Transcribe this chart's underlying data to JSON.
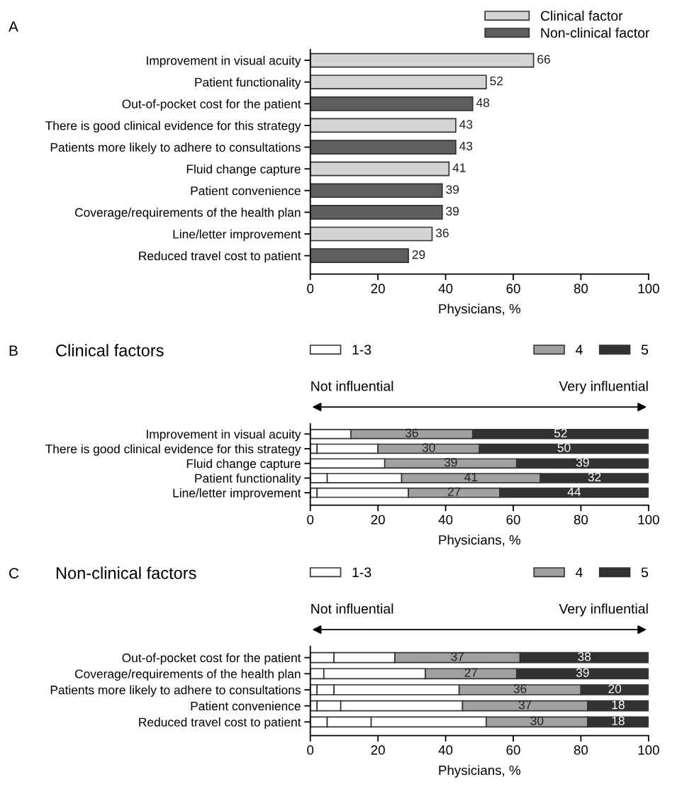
{
  "chart_data": [
    {
      "type": "bar",
      "orientation": "horizontal",
      "annotations": [
        "A"
      ],
      "xlabel": "Physicians, %",
      "categories": [
        "Improvement in visual acuity",
        "Patient functionality",
        "Out-of-pocket cost for the patient",
        "There is good clinical evidence for this strategy",
        "Patients more likely to adhere to consultations",
        "Fluid change capture",
        "Patient convenience",
        "Coverage/requirements of the health plan",
        "Line/letter improvement",
        "Reduced travel cost to patient"
      ],
      "series": [
        {
          "name": "Clinical factor",
          "color": "#d4d4d4",
          "values": [
            66,
            52,
            null,
            43,
            null,
            41,
            null,
            null,
            36,
            null
          ]
        },
        {
          "name": "Non-clinical factor",
          "color": "#5e5e5e",
          "values": [
            null,
            null,
            48,
            null,
            43,
            null,
            39,
            39,
            null,
            29
          ]
        }
      ],
      "data_labels": true,
      "xlim": [
        0,
        100
      ],
      "xticks": [
        0,
        20,
        40,
        60,
        80,
        100
      ],
      "legend": "top right",
      "grid": false
    },
    {
      "type": "bar",
      "orientation": "horizontal",
      "stacked": true,
      "title": "Clinical factors",
      "annotations": [
        "B",
        "Not influential",
        "Very influential"
      ],
      "xlabel": "Physicians, %",
      "categories": [
        "Improvement in visual acuity",
        "There is good clinical evidence for this strategy",
        "Fluid change capture",
        "Patient functionality",
        "Line/letter improvement"
      ],
      "series": [
        {
          "name": "1-3",
          "color": "#ffffff",
          "values": [
            12,
            2,
            22,
            5,
            2
          ]
        },
        {
          "color": "#ffffff",
          "values": [
            null,
            18,
            null,
            22,
            27
          ]
        },
        {
          "color": "#ffffff",
          "values": [
            null,
            null,
            null,
            null,
            null
          ]
        },
        {
          "name": "4",
          "color": "#a0a0a2",
          "values": [
            36,
            30,
            39,
            41,
            27
          ],
          "value_labels": [
            "36",
            "30",
            "39",
            "41",
            "27"
          ]
        },
        {
          "name": "5",
          "color": "#323232",
          "values": [
            52,
            50,
            39,
            32,
            44
          ],
          "value_labels": [
            "52",
            "50",
            "39",
            "32",
            "44"
          ]
        }
      ],
      "xlim": [
        0,
        100
      ],
      "xticks": [
        0,
        20,
        40,
        60,
        80,
        100
      ],
      "legend": "top",
      "grid": false
    },
    {
      "type": "bar",
      "orientation": "horizontal",
      "stacked": true,
      "title": "Non-clinical factors",
      "annotations": [
        "C",
        "Not influential",
        "Very influential"
      ],
      "xlabel": "Physicians, %",
      "categories": [
        "Out-of-pocket cost for the patient",
        "Coverage/requirements of the health plan",
        "Patients more likely to adhere to consultations",
        "Patient convenience",
        "Reduced travel cost to patient"
      ],
      "series": [
        {
          "name": "1-3",
          "color": "#ffffff",
          "values": [
            7,
            4,
            2,
            2,
            5
          ]
        },
        {
          "color": "#ffffff",
          "values": [
            18,
            30,
            5,
            7,
            13
          ]
        },
        {
          "color": "#ffffff",
          "values": [
            null,
            null,
            37,
            36,
            34
          ]
        },
        {
          "name": "4",
          "color": "#a0a0a2",
          "values": [
            37,
            27,
            36,
            37,
            30
          ],
          "value_labels": [
            "37",
            "27",
            "36",
            "37",
            "30"
          ]
        },
        {
          "name": "5",
          "color": "#323232",
          "values": [
            38,
            39,
            20,
            18,
            18
          ],
          "value_labels": [
            "38",
            "39",
            "20",
            "18",
            "18"
          ]
        }
      ],
      "xlim": [
        0,
        100
      ],
      "xticks": [
        0,
        20,
        40,
        60,
        80,
        100
      ],
      "legend": "top",
      "grid": false
    }
  ]
}
